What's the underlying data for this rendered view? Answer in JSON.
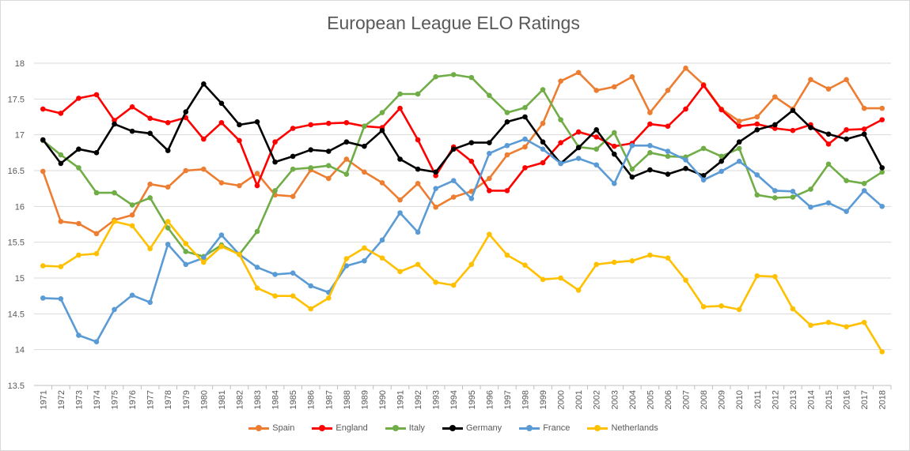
{
  "chart_data": {
    "type": "line",
    "title": "European League ELO Ratings",
    "xlabel": "",
    "ylabel": "",
    "ylim": [
      13.5,
      18
    ],
    "yticks": [
      "13.5",
      "14",
      "14.5",
      "15",
      "15.5",
      "16",
      "16.5",
      "17",
      "17.5",
      "18"
    ],
    "grid": true,
    "legend_position": "bottom",
    "categories": [
      "1971",
      "1972",
      "1973",
      "1974",
      "1975",
      "1976",
      "1977",
      "1978",
      "1979",
      "1980",
      "1981",
      "1982",
      "1983",
      "1984",
      "1985",
      "1986",
      "1987",
      "1988",
      "1989",
      "1990",
      "1991",
      "1992",
      "1993",
      "1994",
      "1995",
      "1996",
      "1997",
      "1998",
      "1999",
      "2000",
      "2001",
      "2002",
      "2003",
      "2004",
      "2005",
      "2006",
      "2007",
      "2008",
      "2009",
      "2010",
      "2011",
      "2012",
      "2013",
      "2014",
      "2015",
      "2016",
      "2017",
      "2018"
    ],
    "series": [
      {
        "name": "Spain",
        "color": "#ed7d31",
        "values": [
          16.49,
          15.79,
          15.76,
          15.62,
          15.81,
          15.88,
          16.31,
          16.27,
          16.5,
          16.52,
          16.33,
          16.29,
          16.46,
          16.16,
          16.14,
          16.51,
          16.39,
          16.66,
          16.48,
          16.33,
          16.09,
          16.32,
          15.99,
          16.13,
          16.21,
          16.39,
          16.72,
          16.83,
          17.16,
          17.75,
          17.87,
          17.62,
          17.67,
          17.81,
          17.31,
          17.62,
          17.93,
          17.7,
          17.36,
          17.19,
          17.25,
          17.53,
          17.36,
          17.77,
          17.64,
          17.77,
          17.37,
          17.37
        ]
      },
      {
        "name": "England",
        "color": "#ff0000",
        "values": [
          17.36,
          17.3,
          17.51,
          17.56,
          17.2,
          17.39,
          17.23,
          17.17,
          17.24,
          16.94,
          17.17,
          16.92,
          16.29,
          16.9,
          17.09,
          17.14,
          17.16,
          17.17,
          17.12,
          17.1,
          17.37,
          16.93,
          16.43,
          16.83,
          16.63,
          16.22,
          16.22,
          16.54,
          16.61,
          16.89,
          17.04,
          16.97,
          16.84,
          16.88,
          17.15,
          17.12,
          17.36,
          17.69,
          17.35,
          17.12,
          17.15,
          17.09,
          17.06,
          17.14,
          16.87,
          17.07,
          17.08,
          17.21
        ]
      },
      {
        "name": "Italy",
        "color": "#70ad47",
        "values": [
          16.92,
          16.72,
          16.54,
          16.19,
          16.19,
          16.02,
          16.12,
          15.7,
          15.37,
          15.3,
          15.46,
          15.33,
          15.65,
          16.22,
          16.52,
          16.54,
          16.57,
          16.45,
          17.12,
          17.31,
          17.57,
          17.57,
          17.81,
          17.84,
          17.8,
          17.55,
          17.31,
          17.38,
          17.63,
          17.21,
          16.83,
          16.8,
          17.03,
          16.52,
          16.75,
          16.7,
          16.69,
          16.81,
          16.7,
          16.81,
          16.16,
          16.12,
          16.13,
          16.24,
          16.59,
          16.36,
          16.32,
          16.48
        ]
      },
      {
        "name": "Germany",
        "color": "#000000",
        "values": [
          16.93,
          16.6,
          16.8,
          16.75,
          17.15,
          17.05,
          17.02,
          16.78,
          17.32,
          17.71,
          17.44,
          17.14,
          17.18,
          16.62,
          16.7,
          16.79,
          16.77,
          16.9,
          16.84,
          17.06,
          16.66,
          16.52,
          16.48,
          16.8,
          16.89,
          16.89,
          17.18,
          17.25,
          16.9,
          16.6,
          16.82,
          17.07,
          16.73,
          16.41,
          16.51,
          16.45,
          16.53,
          16.43,
          16.63,
          16.9,
          17.07,
          17.14,
          17.34,
          17.1,
          17.01,
          16.94,
          17.01,
          16.54
        ]
      },
      {
        "name": "France",
        "color": "#5b9bd5",
        "values": [
          14.72,
          14.71,
          14.2,
          14.11,
          14.56,
          14.76,
          14.66,
          15.47,
          15.19,
          15.28,
          15.6,
          15.33,
          15.15,
          15.05,
          15.07,
          14.89,
          14.8,
          15.17,
          15.24,
          15.53,
          15.91,
          15.64,
          16.25,
          16.36,
          16.11,
          16.74,
          16.85,
          16.94,
          16.8,
          16.6,
          16.67,
          16.58,
          16.32,
          16.85,
          16.85,
          16.77,
          16.65,
          16.37,
          16.49,
          16.63,
          16.44,
          16.22,
          16.21,
          15.99,
          16.05,
          15.93,
          16.22,
          16.0
        ]
      },
      {
        "name": "Netherlands",
        "color": "#ffc000",
        "values": [
          15.17,
          15.16,
          15.32,
          15.34,
          15.79,
          15.73,
          15.41,
          15.79,
          15.48,
          15.22,
          15.44,
          15.33,
          14.86,
          14.75,
          14.75,
          14.57,
          14.72,
          15.27,
          15.42,
          15.28,
          15.09,
          15.19,
          14.94,
          14.9,
          15.19,
          15.61,
          15.32,
          15.18,
          14.98,
          15.0,
          14.83,
          15.19,
          15.22,
          15.24,
          15.32,
          15.28,
          14.97,
          14.6,
          14.61,
          14.56,
          15.03,
          15.02,
          14.57,
          14.34,
          14.38,
          14.32,
          14.38,
          13.97
        ]
      }
    ]
  }
}
